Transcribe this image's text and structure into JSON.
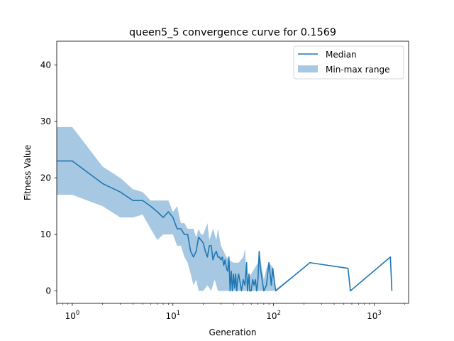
{
  "chart_data": {
    "type": "line",
    "title": "queen5_5 convergence curve for 0.1569",
    "xlabel": "Generation",
    "ylabel": "Fitness Value",
    "xscale": "log",
    "xlim": [
      0.7,
      2200
    ],
    "ylim": [
      -2.2,
      44.2
    ],
    "xticks": [
      {
        "value": 1,
        "base": "10",
        "exp": "0"
      },
      {
        "value": 10,
        "base": "10",
        "exp": "1"
      },
      {
        "value": 100,
        "base": "10",
        "exp": "2"
      },
      {
        "value": 1000,
        "base": "10",
        "exp": "3"
      }
    ],
    "yticks": [
      0,
      10,
      20,
      30,
      40
    ],
    "legend": {
      "position": "top-right",
      "entries": [
        "Median",
        "Min-max range"
      ]
    },
    "colors": {
      "median": "#1f77b4",
      "band": "#a6c8e2"
    },
    "series": [
      {
        "name": "Median",
        "kind": "line",
        "points": [
          [
            0.7,
            23
          ],
          [
            1,
            23
          ],
          [
            2,
            19
          ],
          [
            3,
            17.5
          ],
          [
            4,
            16
          ],
          [
            5,
            16
          ],
          [
            6,
            15
          ],
          [
            7,
            14
          ],
          [
            8,
            13
          ],
          [
            9,
            14
          ],
          [
            10,
            13
          ],
          [
            11,
            11
          ],
          [
            12,
            11
          ],
          [
            13,
            10
          ],
          [
            14,
            10
          ],
          [
            15,
            7
          ],
          [
            16,
            6
          ],
          [
            17,
            7
          ],
          [
            18,
            9.5
          ],
          [
            19,
            9
          ],
          [
            20,
            8.5
          ],
          [
            21,
            7
          ],
          [
            22,
            6
          ],
          [
            23,
            8
          ],
          [
            24,
            8
          ],
          [
            25,
            5.5
          ],
          [
            26,
            6.5
          ],
          [
            27,
            7
          ],
          [
            28,
            6
          ],
          [
            29,
            6
          ],
          [
            30,
            5.5
          ],
          [
            31,
            6
          ],
          [
            32,
            4.5
          ],
          [
            33,
            5.5
          ],
          [
            34,
            4
          ],
          [
            35,
            3.5
          ],
          [
            36,
            6
          ],
          [
            37,
            0
          ],
          [
            38,
            3.5
          ],
          [
            39,
            0
          ],
          [
            40,
            3
          ],
          [
            41,
            0.5
          ],
          [
            42,
            3
          ],
          [
            43,
            0
          ],
          [
            44,
            2
          ],
          [
            45,
            3
          ],
          [
            46,
            2
          ],
          [
            47,
            1
          ],
          [
            48,
            0
          ],
          [
            50,
            2
          ],
          [
            52,
            1
          ],
          [
            54,
            5
          ],
          [
            55,
            0
          ],
          [
            57,
            3
          ],
          [
            58,
            0
          ],
          [
            60,
            0
          ],
          [
            62,
            2
          ],
          [
            64,
            1
          ],
          [
            66,
            2
          ],
          [
            68,
            0
          ],
          [
            70,
            2
          ],
          [
            72,
            7
          ],
          [
            74,
            4
          ],
          [
            80,
            0
          ],
          [
            85,
            1
          ],
          [
            90,
            5
          ],
          [
            95,
            1
          ],
          [
            98,
            4
          ],
          [
            105,
            0
          ],
          [
            230,
            5
          ],
          [
            550,
            4
          ],
          [
            580,
            0
          ],
          [
            1450,
            6
          ],
          [
            1500,
            0
          ]
        ]
      },
      {
        "name": "Min-max range",
        "kind": "band",
        "lower": [
          [
            0.7,
            17
          ],
          [
            1,
            17
          ],
          [
            2,
            15
          ],
          [
            3,
            13
          ],
          [
            4,
            13
          ],
          [
            5,
            13.5
          ],
          [
            6,
            11
          ],
          [
            7,
            9
          ],
          [
            8,
            10
          ],
          [
            10,
            10
          ],
          [
            11,
            8
          ],
          [
            12,
            8
          ],
          [
            13,
            6
          ],
          [
            14,
            5
          ],
          [
            15,
            3
          ],
          [
            16,
            1
          ],
          [
            17,
            2
          ],
          [
            18,
            0
          ],
          [
            20,
            0
          ],
          [
            22,
            1
          ],
          [
            24,
            0
          ],
          [
            26,
            2
          ],
          [
            28,
            0
          ],
          [
            30,
            0
          ],
          [
            35,
            0
          ],
          [
            40,
            0
          ],
          [
            50,
            0
          ],
          [
            60,
            0
          ],
          [
            80,
            0
          ],
          [
            100,
            0
          ],
          [
            230,
            5
          ],
          [
            550,
            4
          ],
          [
            580,
            0
          ],
          [
            1450,
            6
          ],
          [
            1500,
            0
          ]
        ],
        "upper": [
          [
            0.7,
            29
          ],
          [
            1,
            29
          ],
          [
            2,
            22
          ],
          [
            3,
            20
          ],
          [
            4,
            18
          ],
          [
            5,
            17.5
          ],
          [
            6,
            16
          ],
          [
            7,
            16
          ],
          [
            8,
            16
          ],
          [
            9,
            16
          ],
          [
            10,
            14
          ],
          [
            11,
            15
          ],
          [
            12,
            12
          ],
          [
            13,
            12
          ],
          [
            14,
            11
          ],
          [
            15,
            11
          ],
          [
            16,
            11
          ],
          [
            17,
            9.5
          ],
          [
            18,
            11
          ],
          [
            19,
            10
          ],
          [
            20,
            10
          ],
          [
            21,
            11
          ],
          [
            22,
            12
          ],
          [
            23,
            9
          ],
          [
            24,
            10
          ],
          [
            25,
            11
          ],
          [
            26,
            10
          ],
          [
            27,
            9
          ],
          [
            28,
            11
          ],
          [
            30,
            8
          ],
          [
            32,
            7
          ],
          [
            34,
            6
          ],
          [
            36,
            5.5
          ],
          [
            40,
            5
          ],
          [
            45,
            5
          ],
          [
            50,
            6
          ],
          [
            52,
            7.5
          ],
          [
            54,
            2
          ],
          [
            60,
            3
          ],
          [
            70,
            5
          ],
          [
            72,
            7
          ],
          [
            80,
            2
          ],
          [
            85,
            4
          ],
          [
            90,
            5
          ],
          [
            100,
            4
          ],
          [
            105,
            0
          ],
          [
            230,
            5
          ],
          [
            550,
            4
          ],
          [
            580,
            0
          ],
          [
            1450,
            6
          ],
          [
            1500,
            0
          ]
        ]
      }
    ]
  }
}
